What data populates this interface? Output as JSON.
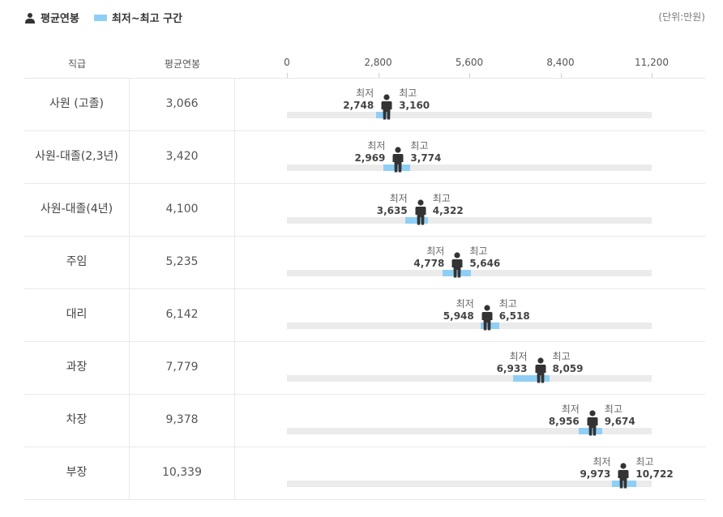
{
  "legend": {
    "avg_label": "평균연봉",
    "range_label": "최저~최고 구간",
    "unit": "(단위:만원)"
  },
  "colors": {
    "range": "#8fcff5",
    "track": "#ebebeb",
    "person": "#333333"
  },
  "table": {
    "col_rank": "직급",
    "col_avg": "평균연봉"
  },
  "labels": {
    "min": "최저",
    "max": "최고"
  },
  "chart_data": {
    "type": "range",
    "xlim": [
      0,
      11200
    ],
    "ticks": [
      "0",
      "2,800",
      "5,600",
      "8,400",
      "11,200"
    ],
    "tick_values": [
      0,
      2800,
      5600,
      8400,
      11200
    ],
    "rows": [
      {
        "rank": "사원 (고졸)",
        "avg": 3066,
        "avg_text": "3,066",
        "min": 2748,
        "min_text": "2,748",
        "max": 3160,
        "max_text": "3,160"
      },
      {
        "rank": "사원-대졸(2,3년)",
        "avg": 3420,
        "avg_text": "3,420",
        "min": 2969,
        "min_text": "2,969",
        "max": 3774,
        "max_text": "3,774"
      },
      {
        "rank": "사원-대졸(4년)",
        "avg": 4100,
        "avg_text": "4,100",
        "min": 3635,
        "min_text": "3,635",
        "max": 4322,
        "max_text": "4,322"
      },
      {
        "rank": "주임",
        "avg": 5235,
        "avg_text": "5,235",
        "min": 4778,
        "min_text": "4,778",
        "max": 5646,
        "max_text": "5,646"
      },
      {
        "rank": "대리",
        "avg": 6142,
        "avg_text": "6,142",
        "min": 5948,
        "min_text": "5,948",
        "max": 6518,
        "max_text": "6,518"
      },
      {
        "rank": "과장",
        "avg": 7779,
        "avg_text": "7,779",
        "min": 6933,
        "min_text": "6,933",
        "max": 8059,
        "max_text": "8,059"
      },
      {
        "rank": "차장",
        "avg": 9378,
        "avg_text": "9,378",
        "min": 8956,
        "min_text": "8,956",
        "max": 9674,
        "max_text": "9,674"
      },
      {
        "rank": "부장",
        "avg": 10339,
        "avg_text": "10,339",
        "min": 9973,
        "min_text": "9,973",
        "max": 10722,
        "max_text": "10,722"
      }
    ]
  }
}
